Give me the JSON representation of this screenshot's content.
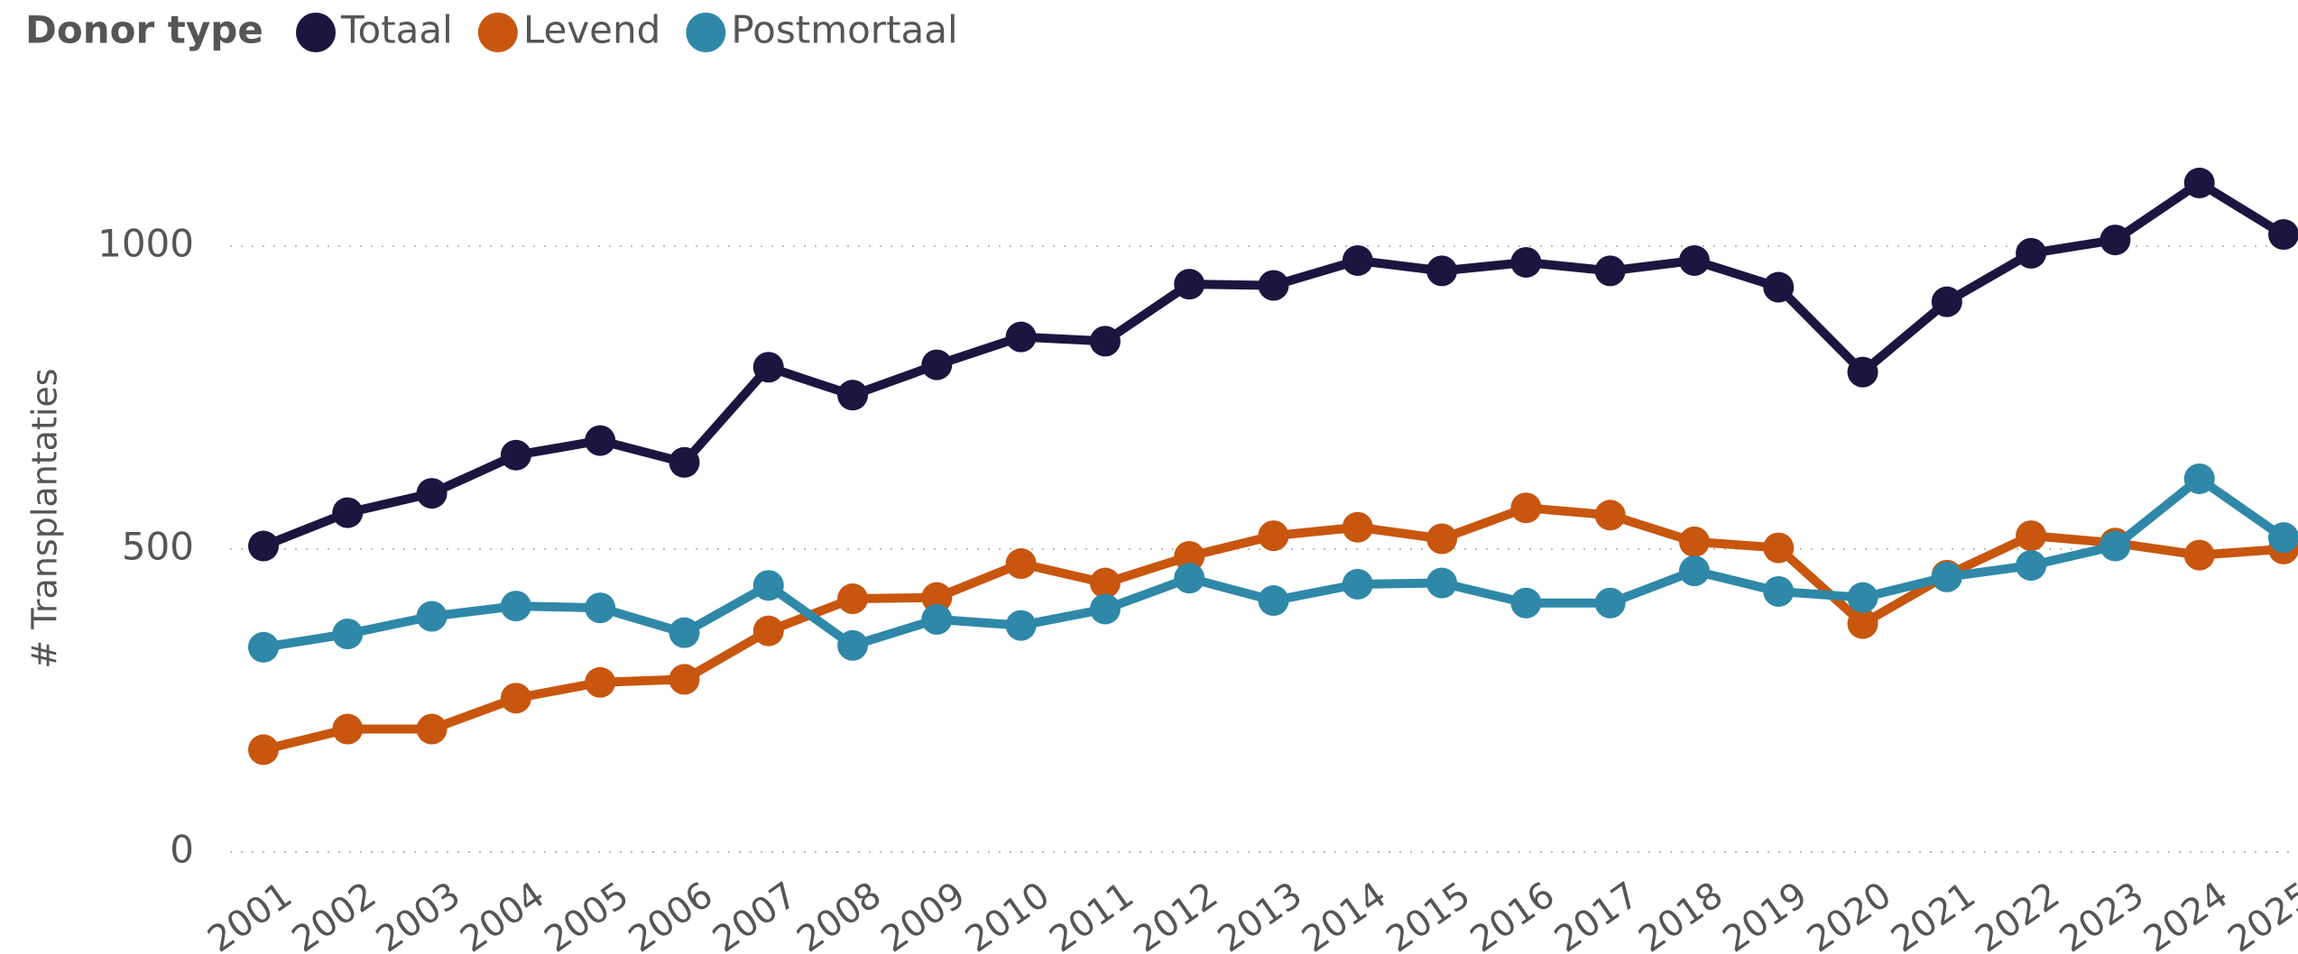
{
  "chart_data": {
    "type": "line",
    "legend_title": "Donor type",
    "ylabel": "# Transplantaties",
    "categories": [
      "2001",
      "2002",
      "2003",
      "2004",
      "2005",
      "2006",
      "2007",
      "2008",
      "2009",
      "2010",
      "2011",
      "2012",
      "2013",
      "2014",
      "2015",
      "2016",
      "2017",
      "2018",
      "2019",
      "2020",
      "2021",
      "2022",
      "2023",
      "2024",
      "2025"
    ],
    "series": [
      {
        "name": "Totaal",
        "color": "#1b1640",
        "values": [
          505,
          560,
          592,
          655,
          679,
          643,
          800,
          754,
          804,
          850,
          843,
          937,
          935,
          976,
          959,
          973,
          959,
          976,
          932,
          792,
          908,
          988,
          1010,
          1104,
          1019
        ]
      },
      {
        "name": "Levend",
        "color": "#c8560f",
        "values": [
          169,
          203,
          203,
          254,
          280,
          285,
          365,
          418,
          420,
          476,
          444,
          488,
          522,
          536,
          517,
          568,
          556,
          512,
          502,
          377,
          457,
          522,
          510,
          490,
          500
        ]
      },
      {
        "name": "Postmortaal",
        "color": "#2f88a8",
        "values": [
          338,
          360,
          389,
          406,
          403,
          362,
          440,
          341,
          384,
          374,
          401,
          452,
          415,
          442,
          444,
          411,
          411,
          464,
          430,
          420,
          454,
          473,
          505,
          616,
          519
        ]
      }
    ],
    "ylim": [
      0,
      1150
    ],
    "yticks": [
      0,
      500,
      1000
    ],
    "grid": true
  }
}
